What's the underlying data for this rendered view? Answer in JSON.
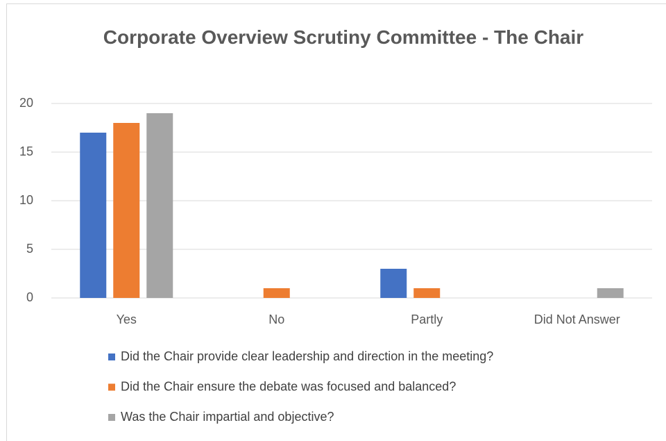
{
  "chart_data": {
    "type": "bar",
    "title": "Corporate Overview Scrutiny Committee - The Chair",
    "categories": [
      "Yes",
      "No",
      "Partly",
      "Did Not Answer"
    ],
    "series": [
      {
        "name": "Did the Chair provide clear leadership and direction in the meeting?",
        "color": "#4472c4",
        "values": [
          17,
          0,
          3,
          0
        ]
      },
      {
        "name": "Did the Chair ensure the debate was focused and balanced?",
        "color": "#ed7d31",
        "values": [
          18,
          1,
          1,
          0
        ]
      },
      {
        "name": "Was the Chair impartial and objective?",
        "color": "#a5a5a5",
        "values": [
          19,
          0,
          0,
          1
        ]
      }
    ],
    "ylim": [
      0,
      20
    ],
    "yticks": [
      0,
      5,
      10,
      15,
      20
    ],
    "grid": true,
    "legend": "bottom"
  }
}
